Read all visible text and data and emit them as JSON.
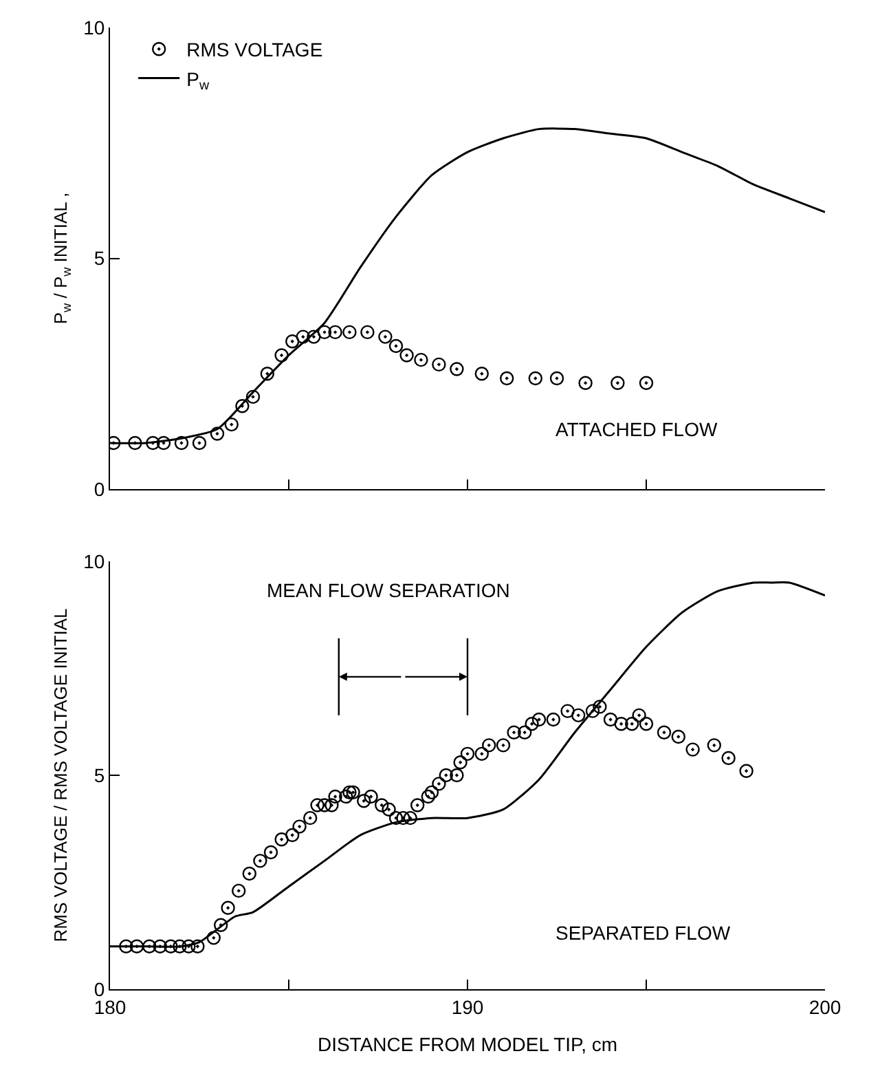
{
  "chart_data": [
    {
      "type": "scatter",
      "ylabel": "P$_{w}$ / P$_{w}$ INITIAL ,",
      "xlim": [
        180,
        200
      ],
      "ylim": [
        0,
        10
      ],
      "xticks": [
        {
          "value": 180,
          "label": null
        },
        {
          "value": 185,
          "label": null
        },
        {
          "value": 190,
          "label": null
        },
        {
          "value": 195,
          "label": null
        },
        {
          "value": 200,
          "label": null
        }
      ],
      "yticks": [
        0,
        5,
        10
      ],
      "tick_labels": "y",
      "legend": "top left",
      "annotations": [
        "ATTACHED FLOW"
      ],
      "series": [
        {
          "name": "RMS VOLTAGE",
          "marker": "circle",
          "color": "#000000",
          "x": [
            180.1,
            180.7,
            181.2,
            181.5,
            182.0,
            182.5,
            183.0,
            183.4,
            183.7,
            184.0,
            184.4,
            184.8,
            185.1,
            185.4,
            185.7,
            186.0,
            186.3,
            186.7,
            187.2,
            187.7,
            188.0,
            188.3,
            188.7,
            189.2,
            189.7,
            190.4,
            191.1,
            191.9,
            192.5,
            193.3,
            194.2,
            195.0
          ],
          "values": [
            1.0,
            1.0,
            1.0,
            1.0,
            1.0,
            1.0,
            1.2,
            1.4,
            1.8,
            2.0,
            2.5,
            2.9,
            3.2,
            3.3,
            3.3,
            3.4,
            3.4,
            3.4,
            3.4,
            3.3,
            3.1,
            2.9,
            2.8,
            2.7,
            2.6,
            2.5,
            2.4,
            2.4,
            2.4,
            2.3,
            2.3,
            2.3
          ]
        },
        {
          "name": "P$_{w}$",
          "type": "line",
          "marker": "none",
          "line_style": "solid",
          "color": "#000000",
          "x": [
            180,
            181,
            182,
            183,
            184,
            185,
            186,
            187,
            188,
            189,
            190,
            191,
            192,
            193,
            194,
            195,
            196,
            197,
            198,
            199,
            200
          ],
          "values": [
            1.0,
            1.0,
            1.1,
            1.3,
            2.1,
            2.9,
            3.6,
            4.8,
            5.9,
            6.8,
            7.3,
            7.6,
            7.8,
            7.8,
            7.7,
            7.6,
            7.3,
            7.0,
            6.6,
            6.3,
            6.0
          ]
        }
      ]
    },
    {
      "type": "scatter",
      "ylabel": "RMS VOLTAGE / RMS VOLTAGE INITIAL",
      "xlabel": "DISTANCE FROM MODEL TIP, cm",
      "xlim": [
        180,
        200
      ],
      "ylim": [
        0,
        10
      ],
      "xticks": [
        180,
        {
          "value": 185,
          "label": null
        },
        190,
        {
          "value": 195,
          "label": null
        },
        200
      ],
      "yticks": [
        0,
        5,
        10
      ],
      "legend": false,
      "annotations": [
        "SEPARATED FLOW"
      ],
      "ref_lines": [
        {
          "axis": "x",
          "value": 186.4,
          "color": "#000000",
          "label": "MEAN FLOW SEPARATION"
        },
        {
          "axis": "x",
          "value": 190.0,
          "color": "#000000"
        }
      ],
      "series": [
        {
          "marker": "circle",
          "color": "#000000",
          "x": [
            180.45,
            180.75,
            181.1,
            181.4,
            181.7,
            181.95,
            182.2,
            182.45,
            182.9,
            183.1,
            183.3,
            183.6,
            183.9,
            184.2,
            184.5,
            184.8,
            185.1,
            185.3,
            185.6,
            185.8,
            186.0,
            186.2,
            186.3,
            186.6,
            186.7,
            186.8,
            187.1,
            187.3,
            187.6,
            187.8,
            188.0,
            188.2,
            188.4,
            188.6,
            188.9,
            189.0,
            189.2,
            189.4,
            189.7,
            189.8,
            190.0,
            190.4,
            190.6,
            191.0,
            191.3,
            191.6,
            191.8,
            192.0,
            192.4,
            192.8,
            193.1,
            193.5,
            193.7,
            194.0,
            194.3,
            194.6,
            194.8,
            195.0,
            195.5,
            195.9,
            196.3,
            196.9,
            197.3,
            197.8
          ],
          "values": [
            1.0,
            1.0,
            1.0,
            1.0,
            1.0,
            1.0,
            1.0,
            1.0,
            1.2,
            1.5,
            1.9,
            2.3,
            2.7,
            3.0,
            3.2,
            3.5,
            3.6,
            3.8,
            4.0,
            4.3,
            4.3,
            4.3,
            4.5,
            4.5,
            4.6,
            4.6,
            4.4,
            4.5,
            4.3,
            4.2,
            4.0,
            4.0,
            4.0,
            4.3,
            4.5,
            4.6,
            4.8,
            5.0,
            5.0,
            5.3,
            5.5,
            5.5,
            5.7,
            5.7,
            6.0,
            6.0,
            6.2,
            6.3,
            6.3,
            6.5,
            6.4,
            6.5,
            6.6,
            6.3,
            6.2,
            6.2,
            6.4,
            6.2,
            6.0,
            5.9,
            5.6,
            5.7,
            5.4,
            5.1
          ]
        },
        {
          "type": "line",
          "marker": "none",
          "line_style": "solid",
          "color": "#000000",
          "x": [
            180,
            181,
            182,
            182.5,
            183,
            183.5,
            184,
            185,
            186,
            187,
            188,
            189,
            190,
            191,
            192,
            193,
            194,
            195,
            196,
            197,
            198,
            198.5,
            199,
            200
          ],
          "values": [
            1.0,
            1.0,
            1.0,
            1.1,
            1.4,
            1.7,
            1.8,
            2.4,
            3.0,
            3.6,
            3.9,
            4.0,
            4.0,
            4.2,
            4.9,
            6.0,
            7.0,
            8.0,
            8.8,
            9.3,
            9.5,
            9.5,
            9.5,
            9.2
          ]
        }
      ]
    }
  ]
}
